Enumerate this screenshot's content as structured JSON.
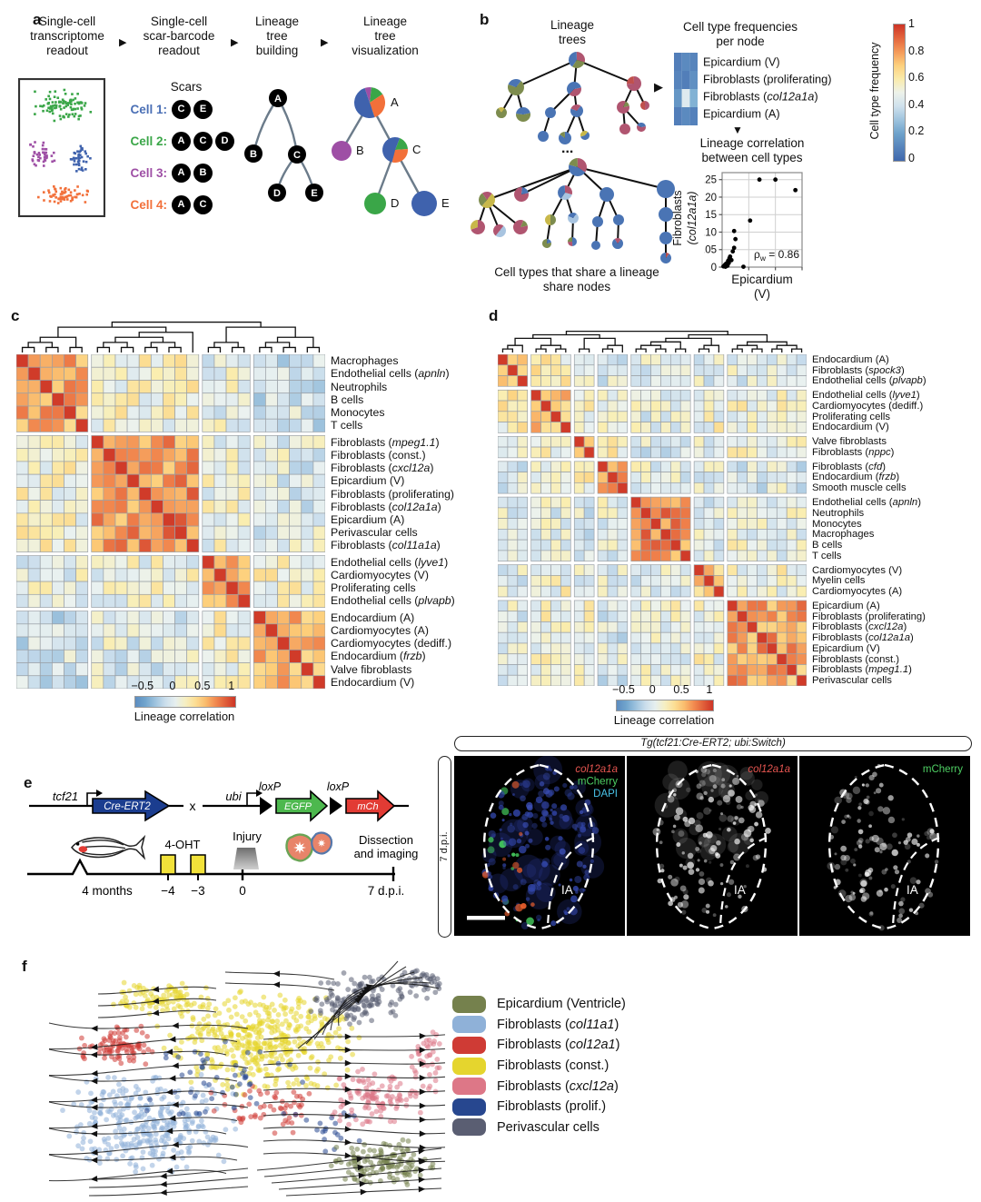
{
  "panel_a": {
    "label": "a",
    "steps": [
      "Single-cell\ntranscriptome\nreadout",
      "Single-cell\nscar-barcode\nreadout",
      "Lineage\ntree\nbuilding",
      "Lineage\ntree\nvisualization"
    ],
    "arrow": "▶",
    "scars_title": "Scars",
    "cells": [
      {
        "name": "Cell 1:",
        "color": "#4a6fb5",
        "scars": [
          "C",
          "E"
        ]
      },
      {
        "name": "Cell 2:",
        "color": "#3aa648",
        "scars": [
          "A",
          "C",
          "D"
        ]
      },
      {
        "name": "Cell 3:",
        "color": "#9e4fa5",
        "scars": [
          "A",
          "B"
        ]
      },
      {
        "name": "Cell 4:",
        "color": "#f2703a",
        "scars": [
          "A",
          "C"
        ]
      }
    ],
    "cluster_colors": [
      "#3aa648",
      "#9e4fa5",
      "#3f62ad",
      "#f2703a"
    ],
    "tree_letters": [
      "A",
      "B",
      "C",
      "D",
      "E"
    ]
  },
  "panel_b": {
    "label": "b",
    "trees_title": "Lineage\ntrees",
    "ellipsis": "...",
    "caption": "Cell types that share a lineage\nshare nodes",
    "freq_title": "Cell type frequencies\nper node",
    "right_arrow": "▶",
    "down_arrow": "▼",
    "freq_rows": [
      [
        "Epicardium (V)"
      ],
      [
        "Fibroblasts (proliferating)"
      ],
      [
        "Fibroblasts (",
        [
          "col12a1a"
        ],
        ")"
      ],
      [
        "Epicardium (A)"
      ]
    ],
    "freq_matrix": [
      [
        0.08,
        0.12,
        0.1
      ],
      [
        0.1,
        0.08,
        0.14
      ],
      [
        0.16,
        0.45,
        0.25
      ],
      [
        0.08,
        0.12,
        0.09
      ]
    ],
    "corr_title": "Lineage correlation\nbetween cell types",
    "scatter_xlabel": "Epicardium\n(V)",
    "scatter_ylabel_line1": "Fibroblasts",
    "scatter_ylabel_line2": "(col12a1a)",
    "annotation": {
      "sym": "ρ",
      "sub": "w",
      "rest": " = 0.86"
    },
    "colorbar": {
      "label": "Cell type frequency",
      "ticks": [
        "1",
        "0.8",
        "0.6",
        "0.4",
        "0.2",
        "0"
      ]
    }
  },
  "panel_c": {
    "label": "c",
    "rows": [
      [
        "Macrophages"
      ],
      [
        "Endothelial cells (",
        [
          "apnln"
        ],
        ")"
      ],
      [
        "Neutrophils"
      ],
      [
        "B cells"
      ],
      [
        "Monocytes"
      ],
      [
        "T cells"
      ],
      [
        "Fibroblasts (",
        [
          "mpeg1.1"
        ],
        ")"
      ],
      [
        "Fibroblasts (const.)"
      ],
      [
        "Fibroblasts (",
        [
          "cxcl12a"
        ],
        ")"
      ],
      [
        "Epicardium (V)"
      ],
      [
        "Fibroblasts (proliferating)"
      ],
      [
        "Fibroblasts (",
        [
          "col12a1a"
        ],
        ")"
      ],
      [
        "Epicardium (A)"
      ],
      [
        "Perivascular cells"
      ],
      [
        "Fibroblasts (",
        [
          "col11a1a"
        ],
        ")"
      ],
      [
        "Endothelial cells (",
        [
          "lyve1"
        ],
        ")"
      ],
      [
        "Cardiomyocytes (V)"
      ],
      [
        "Proliferating cells"
      ],
      [
        "Endothelial cells (",
        [
          "plvapb"
        ],
        ")"
      ],
      [
        "Endocardium (A)"
      ],
      [
        "Cardiomyocytes (A)"
      ],
      [
        "Cardiomyocytes (dediff.)"
      ],
      [
        "Endocardium (",
        [
          "frzb"
        ],
        ")"
      ],
      [
        "Valve fibroblasts"
      ],
      [
        "Endocardium (V)"
      ]
    ],
    "colorbar": {
      "ticks": [
        "−0.5",
        "0",
        "0.5",
        "1"
      ],
      "label": "Lineage correlation"
    }
  },
  "panel_d": {
    "label": "d",
    "rows": [
      [
        "Endocardium (A)"
      ],
      [
        "Fibroblasts (",
        [
          "spock3"
        ],
        ")"
      ],
      [
        "Endothelial cells (",
        [
          "plvapb"
        ],
        ")"
      ],
      [
        "Endothelial cells (",
        [
          "lyve1"
        ],
        ")"
      ],
      [
        "Cardiomyocytes (dediff.)"
      ],
      [
        "Proliferating cells"
      ],
      [
        "Endocardium (V)"
      ],
      [
        "Valve fibroblasts"
      ],
      [
        "Fibroblasts (",
        [
          "nppc"
        ],
        ")"
      ],
      [
        "Fibroblasts (",
        [
          "cfd"
        ],
        ")"
      ],
      [
        "Endocardium (",
        [
          "frzb"
        ],
        ")"
      ],
      [
        "Smooth muscle cells"
      ],
      [
        "Endothelial cells (",
        [
          "apnln"
        ],
        ")"
      ],
      [
        "Neutrophils"
      ],
      [
        "Monocytes"
      ],
      [
        "Macrophages"
      ],
      [
        "B cells"
      ],
      [
        "T cells"
      ],
      [
        "Cardiomyocytes (V)"
      ],
      [
        "Myelin cells"
      ],
      [
        "Cardiomyocytes (A)"
      ],
      [
        "Epicardium (A)"
      ],
      [
        "Fibroblasts (proliferating)"
      ],
      [
        "Fibroblasts (",
        [
          "cxcl12a"
        ],
        ")"
      ],
      [
        "Fibroblasts (",
        [
          "col12a1a"
        ],
        ")"
      ],
      [
        "Epicardium (V)"
      ],
      [
        "Fibroblasts (const.)"
      ],
      [
        "Fibroblasts (",
        [
          "mpeg1.1"
        ],
        ")"
      ],
      [
        "Perivascular cells"
      ]
    ],
    "colorbar": {
      "ticks": [
        "−0.5",
        "0",
        "0.5",
        "1"
      ],
      "label": "Lineage correlation"
    }
  },
  "panel_e": {
    "label": "e",
    "gene1_promoter": "tcf21",
    "gene1": "Cre-ERT2",
    "cross": "x",
    "gene2_promoter": "ubi",
    "loxp1": "loxP",
    "loxp2": "loxP",
    "egfp": "EGFP",
    "mch": "mCh",
    "treatment": "4-OHT",
    "injury": "Injury",
    "dissection": "Dissection\nand imaging",
    "t_start": "4 months",
    "t1": "−4",
    "t2": "−3",
    "t3": "0",
    "t_end": "7 d.p.i.",
    "header": "Tg(tcf21:Cre-ERT2; ubi:Switch)",
    "side_label": "7 d.p.i.",
    "region_label": "IA",
    "img1_labels": [
      {
        "text": "col12a1a",
        "color": "#e65550",
        "italic": true
      },
      {
        "text": "mCherry",
        "color": "#4ecf63",
        "italic": false
      },
      {
        "text": "DAPI",
        "color": "#49c3e8",
        "italic": false
      }
    ],
    "img2_labels": [
      {
        "text": "col12a1a",
        "color": "#e65550",
        "italic": true
      }
    ],
    "img3_labels": [
      {
        "text": "mCherry",
        "color": "#4ecf63",
        "italic": false
      }
    ]
  },
  "panel_f": {
    "label": "f",
    "legend": [
      {
        "color": "#75814d",
        "segments": [
          "Epicardium (Ventricle)"
        ]
      },
      {
        "color": "#8fb1d8",
        "segments": [
          "Fibroblasts (",
          [
            "col11a1"
          ],
          ")"
        ]
      },
      {
        "color": "#cf3b35",
        "segments": [
          "Fibroblasts (",
          [
            "col12a1"
          ],
          ")"
        ]
      },
      {
        "color": "#e5d52e",
        "segments": [
          "Fibroblasts (const.)"
        ]
      },
      {
        "color": "#dd7787",
        "segments": [
          "Fibroblasts (",
          [
            "cxcl12a"
          ],
          ")"
        ]
      },
      {
        "color": "#27478f",
        "segments": [
          "Fibroblasts (prolif.)"
        ]
      },
      {
        "color": "#5a5e72",
        "segments": [
          "Perivascular cells"
        ]
      }
    ]
  },
  "chart_data": [
    {
      "type": "scatter",
      "title": "Lineage correlation between cell types",
      "xlabel": "Epicardium (V)",
      "ylabel": "Fibroblasts (col12a1a)",
      "xlim": [
        0,
        0.6
      ],
      "ylim": [
        0,
        0.27
      ],
      "yticks": [
        "0.25",
        "0.20",
        "0.15",
        "0.10",
        "0.05",
        "0"
      ],
      "ytick_values": [
        0.25,
        0.2,
        0.15,
        0.1,
        0.05,
        0
      ],
      "xgrid": [
        0.2,
        0.4
      ],
      "annotation": "ρw = 0.86",
      "points": [
        [
          0.01,
          0.002
        ],
        [
          0.02,
          0.006
        ],
        [
          0.025,
          0.001
        ],
        [
          0.03,
          0.01
        ],
        [
          0.04,
          0.004
        ],
        [
          0.045,
          0.018
        ],
        [
          0.05,
          0.012
        ],
        [
          0.055,
          0.025
        ],
        [
          0.06,
          0.03
        ],
        [
          0.07,
          0.02
        ],
        [
          0.08,
          0.045
        ],
        [
          0.09,
          0.055
        ],
        [
          0.1,
          0.08
        ],
        [
          0.09,
          0.103
        ],
        [
          0.16,
          0.001
        ],
        [
          0.21,
          0.133
        ],
        [
          0.28,
          0.25
        ],
        [
          0.4,
          0.25
        ],
        [
          0.55,
          0.22
        ]
      ]
    },
    {
      "type": "heatmap",
      "name": "panel_c_clustermap",
      "title": "Lineage correlation",
      "n": 25,
      "blocks": [
        6,
        9,
        4,
        6
      ],
      "diagonal_value": 1,
      "block_mean_correlation": [
        [
          0.55,
          0.08,
          -0.02,
          -0.18
        ],
        [
          0.08,
          0.62,
          0.02,
          -0.08
        ],
        [
          -0.02,
          0.02,
          0.42,
          0.08
        ],
        [
          -0.18,
          -0.08,
          0.08,
          0.48
        ]
      ],
      "scale": {
        "min": -0.75,
        "max": 1
      },
      "colorbar_ticks": [
        -0.5,
        0,
        0.5,
        1
      ]
    },
    {
      "type": "heatmap",
      "name": "panel_d_clustermap",
      "title": "Lineage correlation",
      "n": 29,
      "blocks": [
        3,
        4,
        2,
        3,
        6,
        3,
        8
      ],
      "diagonal_value": 1,
      "block_mean_correlation": [
        [
          0.5,
          0.15,
          0.0,
          -0.08,
          -0.08,
          -0.05,
          -0.05
        ],
        [
          0.15,
          0.35,
          0.08,
          0.02,
          -0.05,
          0.05,
          0.05
        ],
        [
          0.0,
          0.08,
          0.55,
          0.1,
          -0.08,
          0.0,
          0.05
        ],
        [
          -0.08,
          0.02,
          0.1,
          0.5,
          -0.05,
          -0.05,
          -0.1
        ],
        [
          -0.08,
          -0.05,
          -0.08,
          -0.05,
          0.62,
          -0.05,
          0.0
        ],
        [
          -0.05,
          0.05,
          0.0,
          -0.05,
          -0.05,
          0.42,
          0.05
        ],
        [
          -0.05,
          0.05,
          0.05,
          -0.1,
          0.0,
          0.05,
          0.55
        ]
      ],
      "scale": {
        "min": -0.75,
        "max": 1
      },
      "colorbar_ticks": [
        -0.5,
        0,
        0.5,
        1
      ]
    },
    {
      "type": "scatter",
      "name": "panel_f_velocity_embedding",
      "clusters": [
        "Epicardium (Ventricle)",
        "Fibroblasts (col11a1)",
        "Fibroblasts (col12a1)",
        "Fibroblasts (const.)",
        "Fibroblasts (cxcl12a)",
        "Fibroblasts (prolif.)",
        "Perivascular cells"
      ]
    }
  ]
}
